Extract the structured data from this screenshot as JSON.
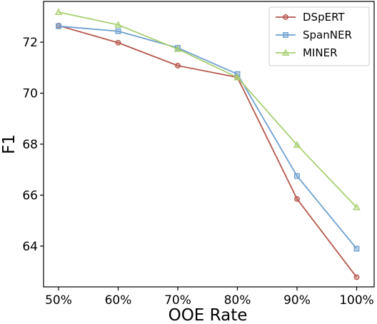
{
  "chart_data": {
    "type": "line",
    "xlabel": "OOE Rate",
    "ylabel": "F1",
    "categories": [
      "50%",
      "60%",
      "70%",
      "80%",
      "90%",
      "100%"
    ],
    "ylim": [
      62.4,
      73.6
    ],
    "yticks": [
      64,
      66,
      68,
      70,
      72
    ],
    "grid": false,
    "legend_position": "top-right",
    "series": [
      {
        "name": "DSpERT",
        "color": "#b5574b",
        "marker": "circle",
        "values": [
          72.65,
          71.98,
          71.08,
          70.62,
          65.85,
          62.78
        ]
      },
      {
        "name": "SpanNER",
        "color": "#6d9fcf",
        "marker": "square",
        "values": [
          72.63,
          72.43,
          71.78,
          70.75,
          66.75,
          63.9
        ]
      },
      {
        "name": "MINER",
        "color": "#a8cf72",
        "marker": "triangle",
        "values": [
          73.18,
          72.68,
          71.73,
          70.62,
          67.97,
          65.52
        ]
      }
    ]
  }
}
